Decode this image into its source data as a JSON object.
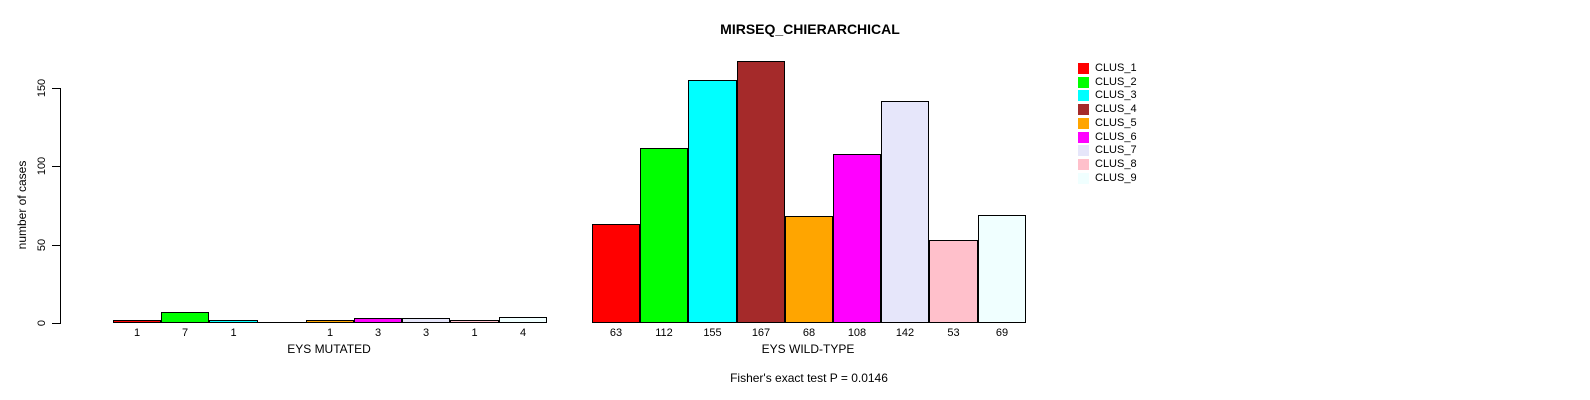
{
  "chart_data": {
    "type": "bar",
    "title": "MIRSEQ_CHIERARCHICAL",
    "ylabel": "number of cases",
    "yticks": [
      0,
      50,
      100,
      150
    ],
    "ylim": [
      0,
      175
    ],
    "grid": false,
    "legend_position": "top-right",
    "legend": [
      {
        "label": "CLUS_1",
        "color": "#FF0000"
      },
      {
        "label": "CLUS_2",
        "color": "#00FF00"
      },
      {
        "label": "CLUS_3",
        "color": "#00FFFF"
      },
      {
        "label": "CLUS_4",
        "color": "#A52A2A"
      },
      {
        "label": "CLUS_5",
        "color": "#FFA500"
      },
      {
        "label": "CLUS_6",
        "color": "#FF00FF"
      },
      {
        "label": "CLUS_7",
        "color": "#E6E6FA"
      },
      {
        "label": "CLUS_8",
        "color": "#FFC0CB"
      },
      {
        "label": "CLUS_9",
        "color": "#F0FFFF"
      }
    ],
    "groups": [
      {
        "label": "EYS MUTATED",
        "clusters": [
          "CLUS_1",
          "CLUS_2",
          "CLUS_3",
          "CLUS_4",
          "CLUS_5",
          "CLUS_6",
          "CLUS_7",
          "CLUS_8",
          "CLUS_9"
        ],
        "values": [
          1,
          7,
          1,
          0,
          1,
          3,
          3,
          1,
          4
        ],
        "bar_labels": [
          "1",
          "7",
          "1",
          "",
          "1",
          "3",
          "3",
          "1",
          "4"
        ]
      },
      {
        "label": "EYS WILD-TYPE",
        "clusters": [
          "CLUS_1",
          "CLUS_2",
          "CLUS_3",
          "CLUS_4",
          "CLUS_5",
          "CLUS_6",
          "CLUS_7",
          "CLUS_8",
          "CLUS_9"
        ],
        "values": [
          63,
          112,
          155,
          167,
          68,
          108,
          142,
          53,
          69
        ],
        "bar_labels": [
          "63",
          "112",
          "155",
          "167",
          "68",
          "108",
          "142",
          "53",
          "69"
        ]
      }
    ],
    "footnote": "Fisher's exact test P = 0.0146"
  }
}
